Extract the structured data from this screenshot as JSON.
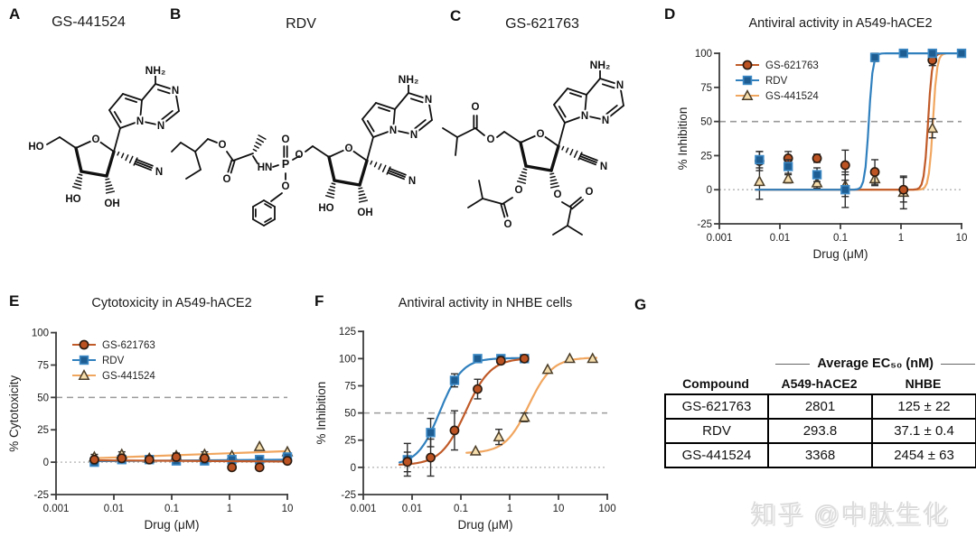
{
  "panel_labels": {
    "a": "A",
    "b": "B",
    "c": "C",
    "d": "D",
    "e": "E",
    "f": "F",
    "g": "G"
  },
  "structures": {
    "a": {
      "title": "GS-441524"
    },
    "b": {
      "title": "RDV"
    },
    "c": {
      "title": "GS-621763"
    },
    "atom_labels": {
      "o": "O",
      "n": "N",
      "ho": "HO",
      "oh": "OH",
      "nh2": "NH₂",
      "hn": "HN",
      "p": "P"
    }
  },
  "colors": {
    "orange_line": "#C05A28",
    "orange_fill": "#BC5322",
    "orange_stroke": "#2A1A10",
    "blue_line": "#3080BE",
    "blue_fill": "#1E5D92",
    "blue_stroke": "#3C89C5",
    "tan_line": "#F1A65F",
    "tan_fill": "#F6DDAC",
    "tan_stroke": "#4A3D28"
  },
  "chart_data": [
    {
      "panel": "D",
      "type": "scatter",
      "title": "Antiviral activity in A549-hACE2",
      "xlabel": "Drug (μM)",
      "ylabel": "% Inhibition",
      "xscale": "log",
      "xlim": [
        0.001,
        10
      ],
      "ylim": [
        -25,
        106
      ],
      "xticks": [
        "0.001",
        "0.01",
        "0.1",
        "1",
        "10"
      ],
      "yticks": [
        -25,
        0,
        25,
        50,
        75,
        100
      ],
      "grid": false,
      "legend_position": "top-left",
      "ref_lines": [
        {
          "y": 50,
          "style": "dashed"
        },
        {
          "y": 0,
          "style": "dotted"
        }
      ],
      "legend_order": [
        "GS-621763",
        "RDV",
        "GS-441524"
      ],
      "series": [
        {
          "name": "GS-441524",
          "marker": "triangle",
          "line": "#F1A65F",
          "fill": "#F6DDAC",
          "stroke": "#4A3D28",
          "curve": {
            "type": "sigmoid",
            "ec50": 3.37,
            "hill": 13,
            "top": 100,
            "bottom": 0,
            "xmin": 0.004,
            "xmax": 5.5
          },
          "points": [
            [
              0.0046,
              6,
              13
            ],
            [
              0.0137,
              8,
              3
            ],
            [
              0.041,
              5,
              4
            ],
            [
              0.12,
              3,
              8
            ],
            [
              0.37,
              8,
              5
            ],
            [
              1.1,
              -2,
              12
            ],
            [
              3.3,
              45,
              7
            ]
          ]
        },
        {
          "name": "GS-621763",
          "marker": "circle",
          "line": "#C05A28",
          "fill": "#BC5322",
          "stroke": "#2A1A10",
          "curve": {
            "type": "sigmoid",
            "ec50": 2.8,
            "hill": 13,
            "top": 100,
            "bottom": 0,
            "xmin": 0.004,
            "xmax": 4.8
          },
          "points": [
            [
              0.0046,
              21,
              7
            ],
            [
              0.0137,
              23,
              5
            ],
            [
              0.041,
              23,
              3
            ],
            [
              0.12,
              18,
              11
            ],
            [
              0.37,
              13,
              9
            ],
            [
              1.1,
              0,
              9
            ],
            [
              3.3,
              95,
              4
            ]
          ]
        },
        {
          "name": "RDV",
          "marker": "square",
          "line": "#3080BE",
          "fill": "#1E5D92",
          "stroke": "#3C89C5",
          "curve": {
            "type": "sigmoid",
            "ec50": 0.294,
            "hill": 13,
            "top": 100,
            "bottom": 0,
            "xmin": 0.004,
            "xmax": 10
          },
          "points": [
            [
              0.0046,
              22,
              6
            ],
            [
              0.0137,
              17,
              5
            ],
            [
              0.041,
              11,
              5
            ],
            [
              0.12,
              0,
              13
            ],
            [
              0.37,
              97,
              3
            ],
            [
              1.1,
              100,
              0
            ],
            [
              3.3,
              100,
              0
            ],
            [
              10,
              100,
              0
            ]
          ]
        }
      ]
    },
    {
      "panel": "E",
      "type": "scatter",
      "title": "Cytotoxicity in A549-hACE2",
      "xlabel": "Drug (μM)",
      "ylabel": "% Cytotoxicity",
      "xscale": "log",
      "xlim": [
        0.001,
        10
      ],
      "ylim": [
        -25,
        106
      ],
      "xticks": [
        "0.001",
        "0.01",
        "0.1",
        "1",
        "10"
      ],
      "yticks": [
        -25,
        0,
        25,
        50,
        75,
        100
      ],
      "grid": false,
      "legend_position": "top-left",
      "ref_lines": [
        {
          "y": 50,
          "style": "dashed"
        },
        {
          "y": 0,
          "style": "dotted"
        }
      ],
      "legend_order": [
        "GS-621763",
        "RDV",
        "GS-441524"
      ],
      "series": [
        {
          "name": "GS-441524",
          "marker": "triangle",
          "line": "#F1A65F",
          "fill": "#F6DDAC",
          "stroke": "#4A3D28",
          "curve": {
            "type": "linear",
            "x0": 0.0042,
            "y0": 3,
            "x1": 10,
            "y1": 8.5
          },
          "points": [
            [
              0.0046,
              4,
              2
            ],
            [
              0.0137,
              6,
              2
            ],
            [
              0.041,
              3,
              0
            ],
            [
              0.12,
              5,
              2
            ],
            [
              0.37,
              6,
              2
            ],
            [
              1.1,
              5,
              0
            ],
            [
              3.3,
              12,
              0
            ],
            [
              10,
              8,
              0
            ]
          ]
        },
        {
          "name": "RDV",
          "marker": "square",
          "line": "#3080BE",
          "fill": "#1E5D92",
          "stroke": "#3C89C5",
          "curve": {
            "type": "linear",
            "x0": 0.0042,
            "y0": 0.8,
            "x1": 10,
            "y1": 2
          },
          "points": [
            [
              0.0046,
              0,
              2
            ],
            [
              0.0137,
              2,
              0
            ],
            [
              0.041,
              2,
              0
            ],
            [
              0.12,
              1,
              0
            ],
            [
              0.37,
              1,
              2
            ],
            [
              1.1,
              2,
              3
            ],
            [
              3.3,
              2,
              0
            ],
            [
              10,
              4,
              0
            ]
          ]
        },
        {
          "name": "GS-621763",
          "marker": "circle",
          "line": "#C05A28",
          "fill": "#BC5322",
          "stroke": "#2A1A10",
          "curve": {
            "type": "linear",
            "x0": 0.0042,
            "y0": 1.5,
            "x1": 10,
            "y1": 0.5
          },
          "points": [
            [
              0.0046,
              2,
              0
            ],
            [
              0.0137,
              3,
              0
            ],
            [
              0.041,
              2,
              0
            ],
            [
              0.12,
              4,
              0
            ],
            [
              0.37,
              3,
              0
            ],
            [
              1.1,
              -4,
              0
            ],
            [
              3.3,
              -4,
              0
            ],
            [
              10,
              1,
              0
            ]
          ]
        }
      ]
    },
    {
      "panel": "F",
      "type": "scatter",
      "title": "Antiviral activity in NHBE cells",
      "xlabel": "Drug (μM)",
      "ylabel": "% Inhibition",
      "xscale": "log",
      "xlim": [
        0.001,
        100
      ],
      "ylim": [
        -25,
        131
      ],
      "xticks": [
        "0.001",
        "0.01",
        "0.1",
        "1",
        "10",
        "100"
      ],
      "yticks": [
        -25,
        0,
        25,
        50,
        75,
        100,
        125
      ],
      "grid": false,
      "legend_position": "none",
      "ref_lines": [
        {
          "y": 50,
          "style": "dashed"
        },
        {
          "y": 0,
          "style": "dotted"
        }
      ],
      "legend_order": null,
      "series": [
        {
          "name": "GS-441524",
          "marker": "triangle",
          "line": "#F1A65F",
          "fill": "#F6DDAC",
          "stroke": "#4A3D28",
          "curve": {
            "type": "sigmoid",
            "ec50": 2.45,
            "hill": 1.8,
            "top": 101,
            "bottom": 13,
            "xmin": 0.13,
            "xmax": 60
          },
          "points": [
            [
              0.2,
              15,
              0
            ],
            [
              0.6,
              28,
              7
            ],
            [
              2,
              46,
              4
            ],
            [
              6,
              90,
              0
            ],
            [
              17,
              100,
              0
            ],
            [
              50,
              100,
              0
            ]
          ]
        },
        {
          "name": "RDV",
          "marker": "square",
          "line": "#3080BE",
          "fill": "#1E5D92",
          "stroke": "#3C89C5",
          "curve": {
            "type": "sigmoid",
            "ec50": 0.037,
            "hill": 1.9,
            "top": 100.5,
            "bottom": 2,
            "xmin": 0.0055,
            "xmax": 2.3
          },
          "points": [
            [
              0.008,
              7,
              15
            ],
            [
              0.024,
              32,
              13
            ],
            [
              0.074,
              80,
              6
            ],
            [
              0.22,
              100,
              0
            ],
            [
              0.66,
              100,
              0
            ],
            [
              2,
              100,
              0
            ]
          ]
        },
        {
          "name": "GS-621763",
          "marker": "circle",
          "line": "#C05A28",
          "fill": "#BC5322",
          "stroke": "#2A1A10",
          "curve": {
            "type": "sigmoid",
            "ec50": 0.125,
            "hill": 1.7,
            "top": 100.5,
            "bottom": 2,
            "xmin": 0.0055,
            "xmax": 2.3
          },
          "points": [
            [
              0.008,
              5,
              9
            ],
            [
              0.024,
              9,
              17
            ],
            [
              0.074,
              34,
              18
            ],
            [
              0.22,
              72,
              9
            ],
            [
              0.66,
              98,
              3
            ],
            [
              2,
              100,
              0
            ]
          ]
        }
      ]
    }
  ],
  "table": {
    "span_header": "Average EC₅₀ (nM)",
    "columns": [
      "Compound",
      "A549-hACE2",
      "NHBE"
    ],
    "rows": [
      {
        "compound": "GS-621763",
        "a549": "2801",
        "nhbe": "125 ± 22"
      },
      {
        "compound": "RDV",
        "a549": "293.8",
        "nhbe": "37.1 ± 0.4"
      },
      {
        "compound": "GS-441524",
        "a549": "3368",
        "nhbe": "2454 ± 63"
      }
    ]
  },
  "watermark": {
    "text": "知乎 @中肽生化"
  }
}
